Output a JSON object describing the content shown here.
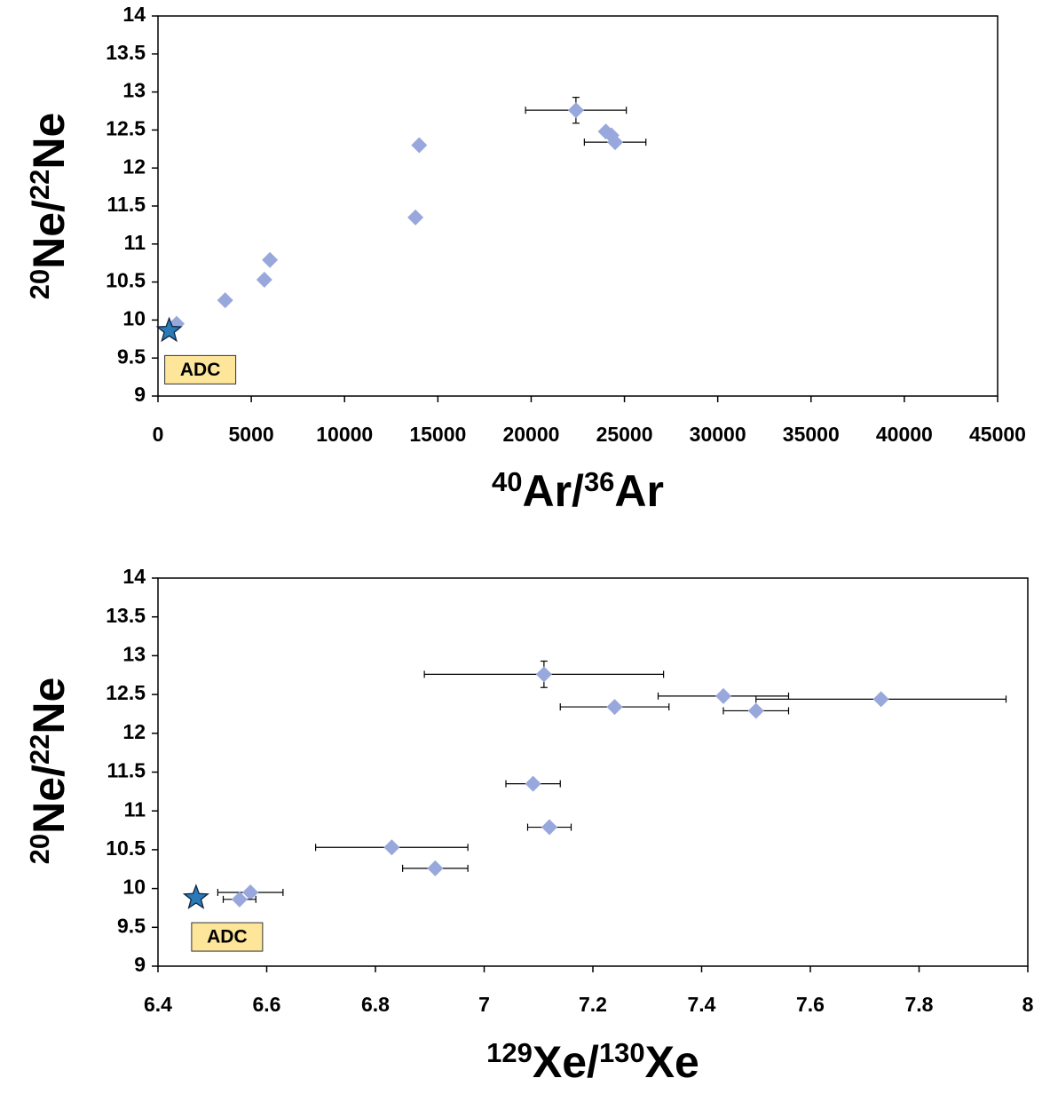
{
  "chart_data": [
    {
      "type": "scatter",
      "x_label": [
        "40",
        "Ar/",
        "36",
        "Ar"
      ],
      "y_label": [
        "20",
        "Ne/",
        "22",
        "Ne"
      ],
      "xlim": [
        0,
        45000
      ],
      "xticks": [
        0,
        5000,
        10000,
        15000,
        20000,
        25000,
        30000,
        35000,
        40000,
        45000
      ],
      "ylim": [
        9,
        14
      ],
      "yticks": [
        9,
        9.5,
        10,
        10.5,
        11,
        11.5,
        12,
        12.5,
        13,
        13.5,
        14
      ],
      "series": [
        {
          "marker": "diamond",
          "color": "#98a8dc",
          "x": [
            1000,
            3600,
            5700,
            6000,
            13800,
            14000,
            22400,
            24000,
            24300,
            24500
          ],
          "values": [
            9.95,
            10.26,
            10.53,
            10.79,
            11.35,
            12.3,
            12.76,
            12.48,
            12.43,
            12.34
          ],
          "xerr": [
            null,
            null,
            null,
            null,
            null,
            null,
            2700,
            null,
            null,
            1650
          ],
          "yerr": [
            null,
            null,
            null,
            null,
            null,
            null,
            0.17,
            null,
            null,
            null
          ]
        },
        {
          "marker": "star",
          "color": "#2a7ab8",
          "x": [
            600
          ],
          "values": [
            9.86
          ],
          "annotation": "ADC"
        }
      ]
    },
    {
      "type": "scatter",
      "x_label": [
        "129",
        "Xe/",
        "130",
        "Xe"
      ],
      "y_label": [
        "20",
        "Ne/",
        "22",
        "Ne"
      ],
      "xlim": [
        6.4,
        8
      ],
      "xticks": [
        6.4,
        6.6,
        6.8,
        7,
        7.2,
        7.4,
        7.6,
        7.8,
        8
      ],
      "ylim": [
        9,
        14
      ],
      "yticks": [
        9,
        9.5,
        10,
        10.5,
        11,
        11.5,
        12,
        12.5,
        13,
        13.5,
        14
      ],
      "series": [
        {
          "marker": "diamond",
          "color": "#98a8dc",
          "x": [
            7.11,
            7.44,
            7.73,
            7.24,
            7.5,
            7.09,
            7.12,
            6.83,
            6.91,
            6.57,
            6.55
          ],
          "values": [
            12.76,
            12.48,
            12.44,
            12.34,
            12.29,
            11.35,
            10.79,
            10.53,
            10.26,
            9.95,
            9.86
          ],
          "xerr": [
            0.22,
            0.12,
            0.23,
            0.1,
            0.06,
            0.05,
            0.04,
            0.14,
            0.06,
            0.06,
            0.03
          ],
          "yerr": [
            0.17,
            null,
            null,
            null,
            null,
            null,
            null,
            null,
            null,
            null,
            null
          ]
        },
        {
          "marker": "star",
          "color": "#2a7ab8",
          "x": [
            6.47
          ],
          "values": [
            9.88
          ],
          "annotation": "ADC"
        }
      ]
    }
  ]
}
